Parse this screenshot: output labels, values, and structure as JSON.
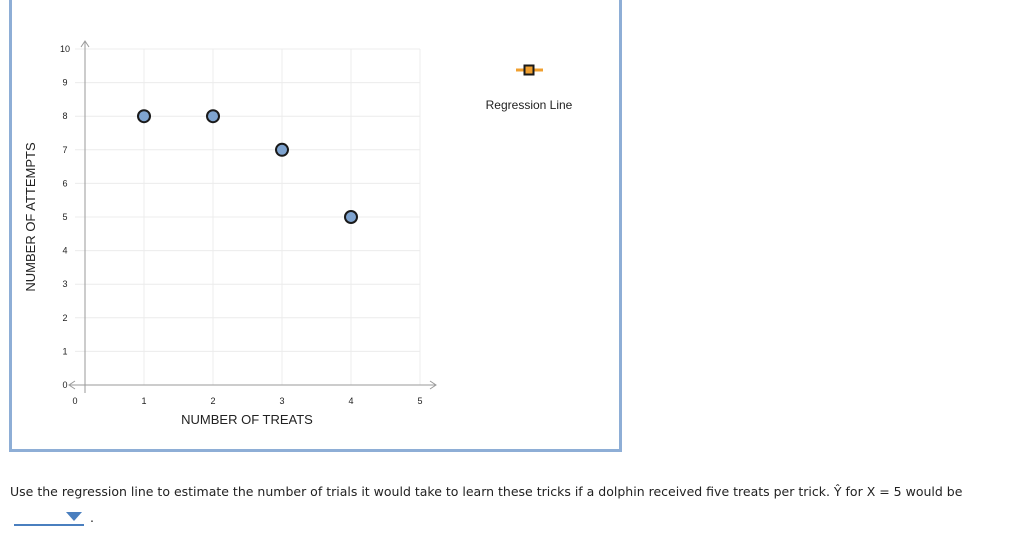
{
  "chart_data": {
    "type": "scatter",
    "title": "",
    "xlabel": "NUMBER OF TREATS",
    "ylabel": "NUMBER OF ATTEMPTS",
    "xlim": [
      0,
      5
    ],
    "ylim": [
      0,
      10
    ],
    "x_ticks": [
      "0",
      "1",
      "2",
      "3",
      "4",
      "5"
    ],
    "y_ticks": [
      "0",
      "1",
      "2",
      "3",
      "4",
      "5",
      "6",
      "7",
      "8",
      "9",
      "10"
    ],
    "grid": true,
    "legend_placement": "top-right",
    "series": [
      {
        "name": "",
        "marker": "circle",
        "color": "#7ea3cf",
        "x": [
          1,
          2,
          3,
          4
        ],
        "y": [
          8,
          8,
          7,
          5
        ]
      }
    ],
    "legend": [
      {
        "name": "Regression Line",
        "marker": "square",
        "line_color": "#f0a030",
        "marker_color": "#1a1a1a"
      }
    ]
  },
  "question": {
    "text_before": "Use the regression line to estimate the number of trials it would take to learn these tricks if a dolphin received five treats per trick. Ŷ for X = 5 would be",
    "selected_value": "",
    "text_after": "."
  }
}
